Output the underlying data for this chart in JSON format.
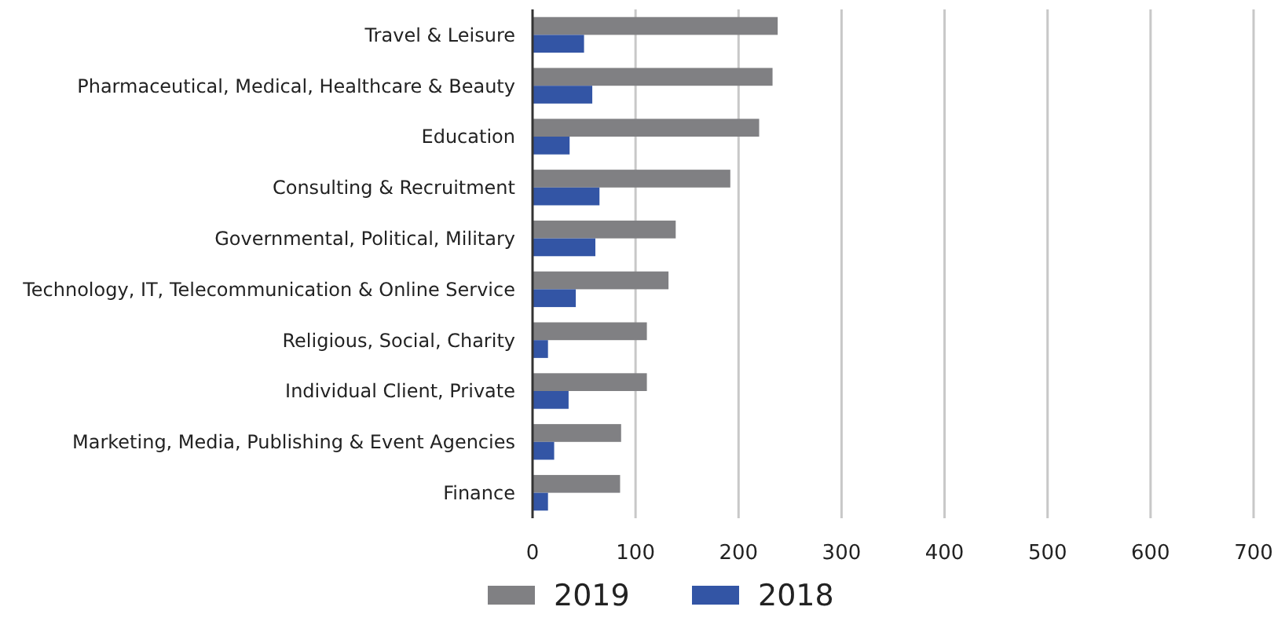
{
  "chart_data": {
    "type": "bar",
    "orientation": "horizontal",
    "categories": [
      "Travel & Leisure",
      "Pharmaceutical, Medical, Healthcare & Beauty",
      "Education",
      "Consulting & Recruitment",
      "Governmental, Political, Military",
      "Technology, IT, Telecommunication & Online Service",
      "Religious, Social, Charity",
      "Individual Client, Private",
      "Marketing, Media, Publishing & Event Agencies",
      "Finance"
    ],
    "series": [
      {
        "name": "2019",
        "color": "#808083",
        "values": [
          238,
          233,
          220,
          192,
          139,
          132,
          111,
          111,
          86,
          85
        ]
      },
      {
        "name": "2018",
        "color": "#3355a5",
        "values": [
          50,
          58,
          36,
          65,
          61,
          42,
          15,
          35,
          21,
          15
        ]
      }
    ],
    "xlim": [
      0,
      700
    ],
    "xticks": [
      0,
      100,
      200,
      300,
      400,
      500,
      600,
      700
    ],
    "grid": "x",
    "legend": "bottom"
  }
}
